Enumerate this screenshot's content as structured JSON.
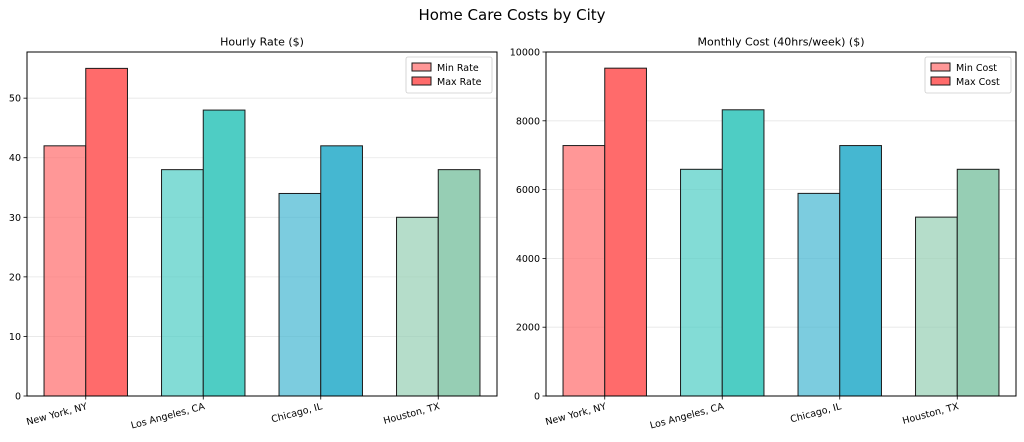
{
  "figure_title": "Home Care Costs by City",
  "chart_data": [
    {
      "type": "bar",
      "title": "Hourly Rate ($)",
      "xlabel": "",
      "ylabel": "",
      "categories": [
        "New York, NY",
        "Los Angeles, CA",
        "Chicago, IL",
        "Houston, TX"
      ],
      "series": [
        {
          "name": "Min Rate",
          "values": [
            42,
            38,
            34,
            30
          ]
        },
        {
          "name": "Max Rate",
          "values": [
            55,
            48,
            42,
            38
          ]
        }
      ],
      "ylim": [
        0,
        57.75
      ],
      "yticks": [
        0,
        10,
        20,
        30,
        40,
        50
      ],
      "ytick_labels": [
        "0",
        "10",
        "20",
        "30",
        "40",
        "50"
      ],
      "grid": "y",
      "legend_position": "top-right"
    },
    {
      "type": "bar",
      "title": "Monthly Cost (40hrs/week) ($)",
      "xlabel": "",
      "ylabel": "",
      "categories": [
        "New York, NY",
        "Los Angeles, CA",
        "Chicago, IL",
        "Houston, TX"
      ],
      "series": [
        {
          "name": "Min Cost",
          "values": [
            7280,
            6590,
            5890,
            5200
          ]
        },
        {
          "name": "Max Cost",
          "values": [
            9530,
            8320,
            7280,
            6590
          ]
        }
      ],
      "ylim": [
        0,
        10000
      ],
      "yticks": [
        0,
        2000,
        4000,
        6000,
        8000,
        10000
      ],
      "ytick_labels": [
        "0",
        "2000",
        "4000",
        "6000",
        "8000",
        "10000"
      ],
      "grid": "y",
      "legend_position": "top-right"
    }
  ],
  "colors": {
    "category_colors": [
      "#FF6B6B",
      "#4ECDC4",
      "#45B7D1",
      "#96CEB4"
    ],
    "min_alpha": 0.7,
    "max_alpha": 1.0,
    "legend_min_color": "#FF6B6B",
    "legend_max_color": "#FF6B6B"
  }
}
